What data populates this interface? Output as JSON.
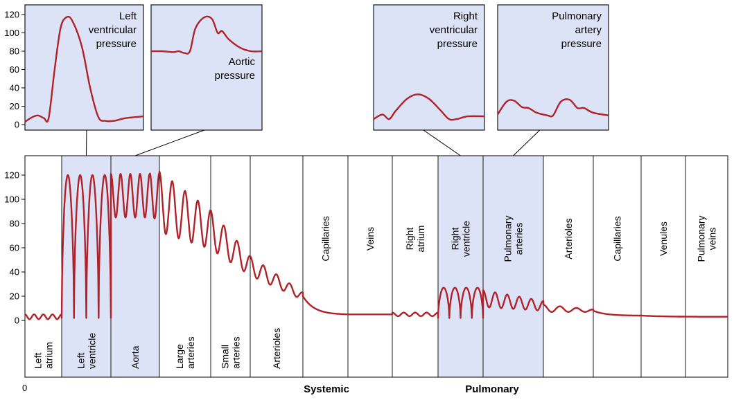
{
  "chart_data": {
    "type": "line",
    "colors": {
      "curve": "#b22028",
      "highlight_fill": "#dde3f7",
      "frame": "#000000"
    },
    "main": {
      "y_ticks": [
        "120",
        "100",
        "80",
        "60",
        "40",
        "20",
        "0"
      ],
      "x_origin_label": "0",
      "ylim": [
        0,
        130
      ],
      "segments": [
        {
          "id": "left-atrium",
          "lines": [
            "Left",
            "atrium"
          ],
          "highlight": false,
          "x_range": [
            0,
            53
          ]
        },
        {
          "id": "left-ventricle",
          "lines": [
            "Left",
            "ventricle"
          ],
          "highlight": true,
          "x_range": [
            53,
            124
          ]
        },
        {
          "id": "aorta",
          "lines": [
            "Aorta"
          ],
          "highlight": true,
          "x_range": [
            124,
            194
          ]
        },
        {
          "id": "large-arteries",
          "lines": [
            "Large",
            "arteries"
          ],
          "highlight": false,
          "x_range": [
            194,
            268
          ]
        },
        {
          "id": "small-arteries",
          "lines": [
            "Small",
            "arteries"
          ],
          "highlight": false,
          "x_range": [
            268,
            325
          ]
        },
        {
          "id": "arterioles",
          "lines": [
            "Arterioles"
          ],
          "highlight": false,
          "x_range": [
            325,
            401
          ]
        },
        {
          "id": "capillaries",
          "lines": [
            "Capillaries"
          ],
          "highlight": false,
          "x_range": [
            401,
            466
          ]
        },
        {
          "id": "veins",
          "lines": [
            "Veins"
          ],
          "highlight": false,
          "x_range": [
            466,
            530
          ]
        },
        {
          "id": "right-atrium",
          "lines": [
            "Right",
            "atrium"
          ],
          "highlight": false,
          "x_range": [
            530,
            596
          ]
        },
        {
          "id": "right-ventricle",
          "lines": [
            "Right",
            "ventricle"
          ],
          "highlight": true,
          "x_range": [
            596,
            661
          ]
        },
        {
          "id": "pulmonary-arteries",
          "lines": [
            "Pulmonary",
            "arteries"
          ],
          "highlight": true,
          "x_range": [
            661,
            748
          ]
        },
        {
          "id": "pulmonary-arterioles",
          "lines": [
            "Arterioles"
          ],
          "highlight": false,
          "x_range": [
            748,
            820
          ]
        },
        {
          "id": "pulmonary-capillaries",
          "lines": [
            "Capillaries"
          ],
          "highlight": false,
          "x_range": [
            820,
            889
          ]
        },
        {
          "id": "venules",
          "lines": [
            "Venules"
          ],
          "highlight": false,
          "x_range": [
            889,
            953
          ]
        },
        {
          "id": "pulmonary-veins",
          "lines": [
            "Pulmonary",
            "veins"
          ],
          "highlight": false,
          "x_range": [
            953,
            1014
          ]
        }
      ],
      "circuits": [
        {
          "label": "Systemic",
          "center": 435
        },
        {
          "label": "Pulmonary",
          "center": 674
        }
      ],
      "series": [
        {
          "region": [
            0,
            53
          ],
          "type": "osc",
          "base": 3,
          "amp": 2,
          "periods": 4
        },
        {
          "region": [
            53,
            124
          ],
          "type": "pulse",
          "min": 2,
          "max": 120,
          "count": 4
        },
        {
          "region": [
            124,
            194
          ],
          "type": "osc",
          "base": 103,
          "amp": 18,
          "periods": 5,
          "end_mult": 1.05
        },
        {
          "region": [
            194,
            268
          ],
          "type": "osc",
          "base": 98,
          "amp": 25,
          "periods": 4,
          "base_end": 75,
          "amp_end": 16
        },
        {
          "region": [
            268,
            325
          ],
          "type": "osc",
          "base": 75,
          "amp": 16,
          "periods": 3,
          "base_end": 45,
          "amp_end": 8
        },
        {
          "region": [
            325,
            401
          ],
          "type": "osc",
          "base": 45,
          "amp": 8,
          "periods": 4,
          "base_end": 20,
          "amp_end": 3
        },
        {
          "region": [
            401,
            466
          ],
          "type": "decay",
          "from": 20,
          "to": 5
        },
        {
          "region": [
            466,
            530
          ],
          "type": "flat",
          "value": 5
        },
        {
          "region": [
            530,
            596
          ],
          "type": "osc",
          "base": 5,
          "amp": 1.5,
          "periods": 4
        },
        {
          "region": [
            596,
            661
          ],
          "type": "pulse",
          "min": 2,
          "max": 27,
          "count": 4
        },
        {
          "region": [
            661,
            748
          ],
          "type": "osc",
          "base": 18,
          "amp": 7,
          "periods": 5,
          "base_end": 12,
          "amp_end": 4
        },
        {
          "region": [
            748,
            820
          ],
          "type": "osc",
          "base": 10,
          "amp": 3,
          "periods": 3,
          "base_end": 8,
          "amp_end": 1
        },
        {
          "region": [
            820,
            889
          ],
          "type": "decay",
          "from": 8,
          "to": 4
        },
        {
          "region": [
            889,
            1014
          ],
          "type": "decay",
          "from": 4,
          "to": 3
        }
      ]
    },
    "insets": [
      {
        "id": "left-ventricular",
        "title_lines": [
          "Left",
          "ventricular",
          "pressure"
        ],
        "y_ticks": [
          "120",
          "100",
          "80",
          "60",
          "40",
          "20",
          "0"
        ],
        "ylim": [
          0,
          130
        ],
        "points": [
          [
            0,
            3
          ],
          [
            6,
            8
          ],
          [
            11,
            10
          ],
          [
            16,
            7
          ],
          [
            20,
            7
          ],
          [
            25,
            60
          ],
          [
            30,
            105
          ],
          [
            35,
            117
          ],
          [
            40,
            113
          ],
          [
            48,
            85
          ],
          [
            55,
            40
          ],
          [
            62,
            8
          ],
          [
            68,
            4
          ],
          [
            75,
            4
          ],
          [
            85,
            7
          ],
          [
            100,
            9
          ]
        ],
        "link_segment": "left-ventricle"
      },
      {
        "id": "aortic",
        "title_lines": [
          "Aortic",
          "pressure"
        ],
        "ylim": [
          0,
          130
        ],
        "points": [
          [
            0,
            80
          ],
          [
            10,
            80
          ],
          [
            20,
            79
          ],
          [
            25,
            80
          ],
          [
            30,
            78
          ],
          [
            35,
            80
          ],
          [
            40,
            105
          ],
          [
            48,
            117
          ],
          [
            55,
            115
          ],
          [
            60,
            100
          ],
          [
            64,
            102
          ],
          [
            70,
            93
          ],
          [
            80,
            84
          ],
          [
            90,
            80
          ],
          [
            100,
            80
          ]
        ],
        "link_segment": "aorta"
      },
      {
        "id": "right-ventricular",
        "title_lines": [
          "Right",
          "ventricular",
          "pressure"
        ],
        "ylim": [
          0,
          130
        ],
        "points": [
          [
            0,
            6
          ],
          [
            8,
            11
          ],
          [
            14,
            6
          ],
          [
            20,
            15
          ],
          [
            30,
            28
          ],
          [
            40,
            33
          ],
          [
            50,
            28
          ],
          [
            60,
            16
          ],
          [
            68,
            6
          ],
          [
            75,
            6
          ],
          [
            85,
            9
          ],
          [
            100,
            9
          ]
        ],
        "link_segment": "right-ventricle"
      },
      {
        "id": "pulmonary-artery",
        "title_lines": [
          "Pulmonary",
          "artery",
          "pressure"
        ],
        "ylim": [
          0,
          130
        ],
        "points": [
          [
            0,
            11
          ],
          [
            8,
            25
          ],
          [
            15,
            26
          ],
          [
            22,
            19
          ],
          [
            28,
            18
          ],
          [
            35,
            13
          ],
          [
            45,
            10
          ],
          [
            50,
            10
          ],
          [
            57,
            25
          ],
          [
            65,
            27
          ],
          [
            72,
            18
          ],
          [
            78,
            18
          ],
          [
            86,
            13
          ],
          [
            100,
            10
          ]
        ],
        "link_segment": "pulmonary-arteries"
      }
    ]
  }
}
